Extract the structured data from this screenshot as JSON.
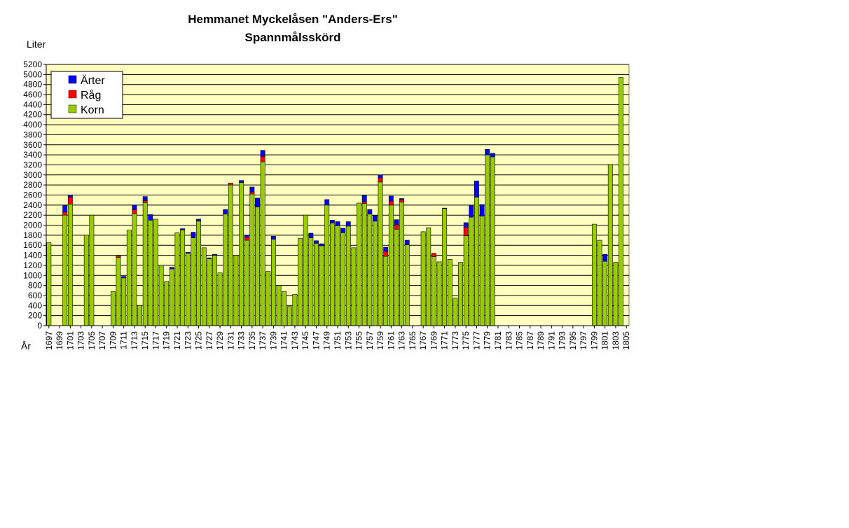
{
  "chart_data": {
    "type": "bar",
    "stacked": true,
    "title": "Hemmanet Myckelåsen  \"Anders-Ers\"",
    "subtitle": "Spannmålsskörd",
    "ylabel": "Liter",
    "xlabel": "År",
    "ylim": [
      0,
      5200
    ],
    "ytick_step": 200,
    "grid": true,
    "legend_position": "top-left",
    "x_start": 1697,
    "x_end": 1805,
    "x_tick_step": 2,
    "colors": {
      "plot_background": "#ffffc0",
      "korn": "#99cc00",
      "rag": "#ff0000",
      "arter": "#0000ff"
    },
    "legend": [
      "Ärter",
      "Råg",
      "Korn"
    ],
    "series": [
      {
        "name": "Korn",
        "color": "#99cc00",
        "values": [
          1650,
          0,
          0,
          2200,
          2420,
          0,
          0,
          1800,
          2200,
          0,
          0,
          0,
          680,
          1360,
          950,
          1900,
          2230,
          400,
          2450,
          2100,
          2120,
          1200,
          880,
          1130,
          1850,
          1900,
          1440,
          1750,
          2080,
          1550,
          1330,
          1400,
          1050,
          2220,
          2800,
          1400,
          2850,
          1700,
          2620,
          2360,
          3260,
          1080,
          1720,
          800,
          680,
          380,
          620,
          1740,
          2200,
          1750,
          1640,
          1590,
          2400,
          2040,
          1990,
          1850,
          1980,
          1550,
          2440,
          2430,
          2220,
          2080,
          2860,
          1380,
          2400,
          1920,
          2460,
          1610,
          0,
          0,
          1870,
          1950,
          1370,
          1270,
          2330,
          1320,
          550,
          1260,
          1790,
          2160,
          2560,
          2180,
          3400,
          3360,
          0,
          0,
          0,
          0,
          0,
          0,
          0,
          0,
          0,
          0,
          0,
          0,
          0,
          0,
          0,
          0,
          0,
          0,
          2020,
          1700,
          1280,
          3210,
          1260,
          4940
        ]
      },
      {
        "name": "Råg",
        "color": "#ff0000",
        "values": [
          0,
          0,
          0,
          60,
          140,
          0,
          0,
          0,
          0,
          0,
          0,
          0,
          0,
          40,
          0,
          0,
          80,
          0,
          40,
          0,
          0,
          0,
          0,
          0,
          0,
          0,
          0,
          0,
          0,
          0,
          0,
          0,
          0,
          0,
          40,
          0,
          0,
          60,
          40,
          0,
          110,
          0,
          0,
          0,
          0,
          0,
          0,
          0,
          0,
          0,
          0,
          0,
          0,
          0,
          0,
          0,
          0,
          0,
          0,
          40,
          0,
          0,
          80,
          100,
          80,
          90,
          50,
          0,
          0,
          0,
          0,
          0,
          70,
          0,
          0,
          0,
          0,
          0,
          170,
          0,
          0,
          0,
          0,
          0,
          0,
          0,
          0,
          0,
          0,
          0,
          0,
          0,
          0,
          0,
          0,
          0,
          0,
          0,
          0,
          0,
          0,
          0,
          0,
          0,
          0,
          0,
          0,
          0
        ]
      },
      {
        "name": "Ärter",
        "color": "#0000ff",
        "values": [
          0,
          0,
          0,
          130,
          40,
          0,
          0,
          0,
          0,
          0,
          0,
          0,
          0,
          0,
          30,
          0,
          90,
          0,
          80,
          110,
          0,
          0,
          0,
          30,
          0,
          30,
          20,
          110,
          40,
          0,
          20,
          20,
          0,
          90,
          0,
          0,
          40,
          40,
          100,
          180,
          120,
          0,
          60,
          0,
          0,
          0,
          0,
          0,
          0,
          90,
          50,
          40,
          110,
          60,
          80,
          90,
          90,
          0,
          0,
          120,
          90,
          110,
          60,
          80,
          100,
          100,
          20,
          90,
          0,
          0,
          0,
          0,
          0,
          0,
          10,
          0,
          0,
          0,
          90,
          230,
          320,
          230,
          110,
          70,
          0,
          0,
          0,
          0,
          0,
          0,
          0,
          0,
          0,
          0,
          0,
          0,
          0,
          0,
          0,
          0,
          0,
          0,
          0,
          0,
          140,
          0,
          0,
          0
        ]
      }
    ]
  }
}
